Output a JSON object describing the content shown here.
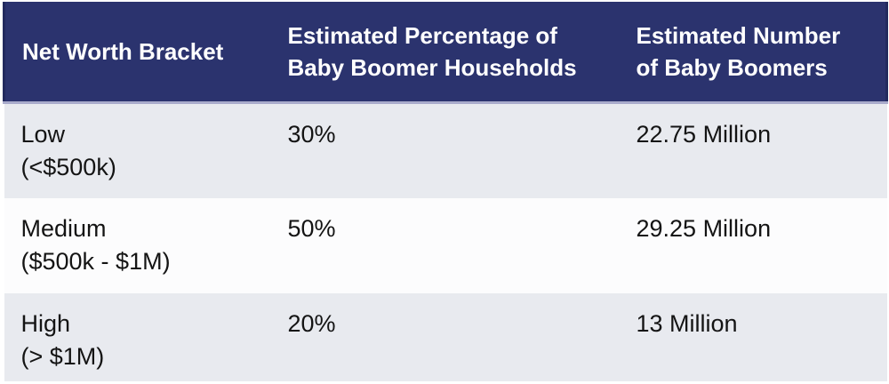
{
  "chart_data": {
    "type": "table",
    "title": "",
    "columns": [
      "Net Worth Bracket",
      "Estimated Percentage of Baby Boomer Households",
      "Estimated Number of Baby Boomers"
    ],
    "rows": [
      [
        "Low (<$500k)",
        "30%",
        "22.75 Million"
      ],
      [
        "Medium ($500k - $1M)",
        "50%",
        "29.25 Million"
      ],
      [
        "High (> $1M)",
        "20%",
        "13 Million"
      ]
    ],
    "percent_values": [
      30,
      50,
      20
    ],
    "boomer_counts_millions": [
      22.75,
      29.25,
      13
    ]
  },
  "table": {
    "header": {
      "col1_lines": [
        "Net Worth Bracket"
      ],
      "col2_lines": [
        "Estimated Percentage of",
        "Baby Boomer Households"
      ],
      "col3_lines": [
        "Estimated Number",
        "of Baby Boomers"
      ]
    },
    "rows": [
      {
        "name": "Low",
        "range": "(<$500k)",
        "percent": "30%",
        "count": "22.75 Million"
      },
      {
        "name": "Medium",
        "range": "($500k - $1M)",
        "percent": "50%",
        "count": "29.25 Million"
      },
      {
        "name": "High",
        "range": "(> $1M)",
        "percent": "20%",
        "count": "13 Million"
      }
    ]
  },
  "colors": {
    "header_bg": "#2B336E",
    "header_text": "#FFFFFF",
    "header_side_border": "#222A5E",
    "header_underline": "#A9ABCB",
    "row_shaded_bg": "#E8EAEF",
    "row_plain_bg": "#FCFCFD",
    "body_text": "#141414"
  }
}
